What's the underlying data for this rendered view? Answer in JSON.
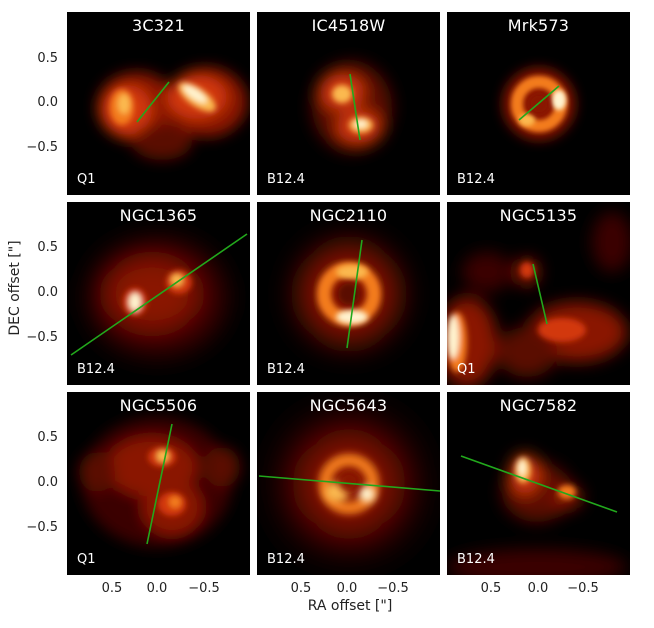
{
  "panels": [
    {
      "name": "3C321",
      "filter": "Q1"
    },
    {
      "name": "IC4518W",
      "filter": "B12.4"
    },
    {
      "name": "Mrk573",
      "filter": "B12.4"
    },
    {
      "name": "NGC1365",
      "filter": "B12.4"
    },
    {
      "name": "NGC2110",
      "filter": "B12.4"
    },
    {
      "name": "NGC5135",
      "filter": "Q1"
    },
    {
      "name": "NGC5506",
      "filter": "Q1"
    },
    {
      "name": "NGC5643",
      "filter": "B12.4"
    },
    {
      "name": "NGC7582",
      "filter": "B12.4"
    }
  ],
  "axes": {
    "xlabel": "RA offset [\"]",
    "ylabel": "DEC offset [\"]",
    "yticks": [
      "0.5",
      "0.0",
      "−0.5"
    ],
    "xticks": [
      "0.5",
      "0.0",
      "−0.5"
    ]
  },
  "colors": {
    "line": "#22a81c",
    "background": "#000000",
    "emission_cmap": [
      "#000000",
      "#3a0500",
      "#8a1400",
      "#d2380a",
      "#f37b1c",
      "#fbb94f",
      "#fff3cf"
    ]
  }
}
